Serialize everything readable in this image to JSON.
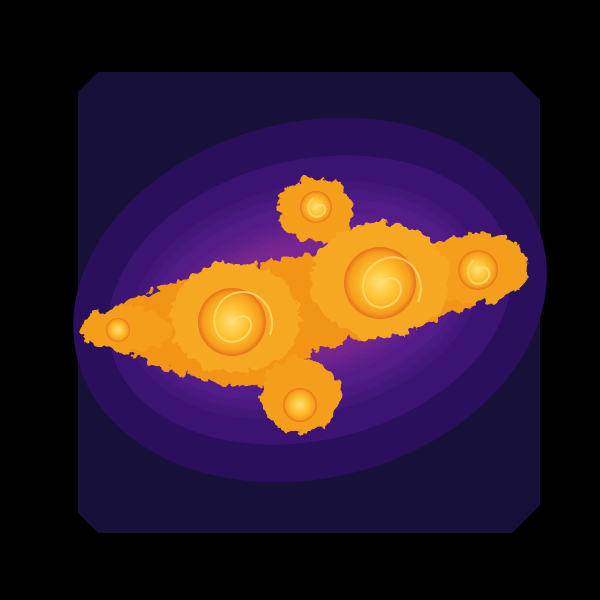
{
  "image": {
    "subject": "julia-set-fractal",
    "palette": {
      "background": "#000000",
      "panel": "#17113a",
      "glow_outer": "#2a0f5c",
      "glow_mid": "#5a1a8f",
      "glow_inner": "#a0308a",
      "fractal_edge": "#e8701a",
      "fractal_body": "#f59e1c",
      "fractal_core": "#ffd34a"
    }
  }
}
